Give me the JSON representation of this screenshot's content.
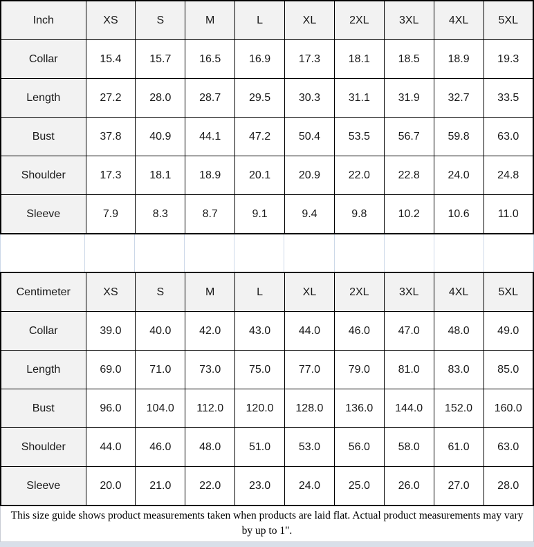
{
  "colors": {
    "table_border": "#000000",
    "header_bg": "#f2f2f2",
    "cell_bg": "#ffffff",
    "gap_line": "#ccd8e8",
    "bottom_strip": "#d9dfe9",
    "text": "#1a1a1a"
  },
  "tables": [
    {
      "unit_label": "Inch",
      "sizes": [
        "XS",
        "S",
        "M",
        "L",
        "XL",
        "2XL",
        "3XL",
        "4XL",
        "5XL"
      ],
      "rows": [
        {
          "label": "Collar",
          "values": [
            "15.4",
            "15.7",
            "16.5",
            "16.9",
            "17.3",
            "18.1",
            "18.5",
            "18.9",
            "19.3"
          ]
        },
        {
          "label": "Length",
          "values": [
            "27.2",
            "28.0",
            "28.7",
            "29.5",
            "30.3",
            "31.1",
            "31.9",
            "32.7",
            "33.5"
          ]
        },
        {
          "label": "Bust",
          "values": [
            "37.8",
            "40.9",
            "44.1",
            "47.2",
            "50.4",
            "53.5",
            "56.7",
            "59.8",
            "63.0"
          ]
        },
        {
          "label": "Shoulder",
          "values": [
            "17.3",
            "18.1",
            "18.9",
            "20.1",
            "20.9",
            "22.0",
            "22.8",
            "24.0",
            "24.8"
          ]
        },
        {
          "label": "Sleeve",
          "values": [
            "7.9",
            "8.3",
            "8.7",
            "9.1",
            "9.4",
            "9.8",
            "10.2",
            "10.6",
            "11.0"
          ]
        }
      ]
    },
    {
      "unit_label": "Centimeter",
      "sizes": [
        "XS",
        "S",
        "M",
        "L",
        "XL",
        "2XL",
        "3XL",
        "4XL",
        "5XL"
      ],
      "rows": [
        {
          "label": "Collar",
          "values": [
            "39.0",
            "40.0",
            "42.0",
            "43.0",
            "44.0",
            "46.0",
            "47.0",
            "48.0",
            "49.0"
          ]
        },
        {
          "label": "Length",
          "values": [
            "69.0",
            "71.0",
            "73.0",
            "75.0",
            "77.0",
            "79.0",
            "81.0",
            "83.0",
            "85.0"
          ]
        },
        {
          "label": "Bust",
          "values": [
            "96.0",
            "104.0",
            "112.0",
            "120.0",
            "128.0",
            "136.0",
            "144.0",
            "152.0",
            "160.0"
          ]
        },
        {
          "label": "Shoulder",
          "values": [
            "44.0",
            "46.0",
            "48.0",
            "51.0",
            "53.0",
            "56.0",
            "58.0",
            "61.0",
            "63.0"
          ]
        },
        {
          "label": "Sleeve",
          "values": [
            "20.0",
            "21.0",
            "22.0",
            "23.0",
            "24.0",
            "25.0",
            "26.0",
            "27.0",
            "28.0"
          ]
        }
      ]
    }
  ],
  "footer": {
    "note": "This size guide shows product measurements taken when products are laid flat. Actual product measurements may vary by up to 1\"."
  }
}
